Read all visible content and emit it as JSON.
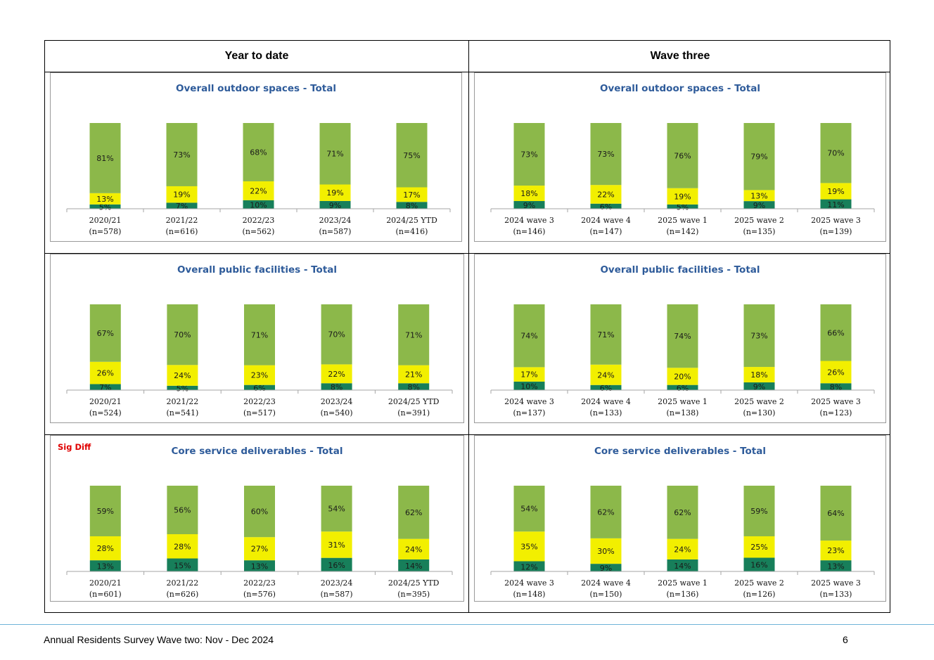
{
  "headers": {
    "left": "Year to date",
    "right": "Wave three"
  },
  "colors": {
    "dark": "#177f5a",
    "mid": "#f2ef00",
    "light": "#8cb84a",
    "title": "#2e5b9a",
    "sig": "#e00000"
  },
  "chart_data": [
    {
      "type": "bar",
      "stacked": true,
      "title": "Overall outdoor spaces - Total",
      "note": "",
      "categories": [
        "2020/21",
        "2021/22",
        "2022/23",
        "2023/24",
        "2024/25 YTD"
      ],
      "bases": [
        "(n=578)",
        "(n=616)",
        "(n=562)",
        "(n=587)",
        "(n=416)"
      ],
      "series": [
        {
          "values": [
            5,
            7,
            10,
            9,
            8
          ]
        },
        {
          "values": [
            13,
            19,
            22,
            19,
            17
          ]
        },
        {
          "values": [
            81,
            73,
            68,
            71,
            75
          ]
        }
      ]
    },
    {
      "type": "bar",
      "stacked": true,
      "title": "Overall outdoor spaces - Total",
      "note": "",
      "categories": [
        "2024 wave 3",
        "2024 wave 4",
        "2025 wave 1",
        "2025 wave 2",
        "2025 wave 3"
      ],
      "bases": [
        "(n=146)",
        "(n=147)",
        "(n=142)",
        "(n=135)",
        "(n=139)"
      ],
      "series": [
        {
          "values": [
            9,
            6,
            5,
            9,
            11
          ]
        },
        {
          "values": [
            18,
            22,
            19,
            13,
            19
          ]
        },
        {
          "values": [
            73,
            73,
            76,
            79,
            70
          ]
        }
      ]
    },
    {
      "type": "bar",
      "stacked": true,
      "title": "Overall public facilities - Total",
      "note": "",
      "categories": [
        "2020/21",
        "2021/22",
        "2022/23",
        "2023/24",
        "2024/25 YTD"
      ],
      "bases": [
        "(n=524)",
        "(n=541)",
        "(n=517)",
        "(n=540)",
        "(n=391)"
      ],
      "series": [
        {
          "values": [
            7,
            5,
            6,
            8,
            8
          ]
        },
        {
          "values": [
            26,
            24,
            23,
            22,
            21
          ]
        },
        {
          "values": [
            67,
            70,
            71,
            70,
            71
          ]
        }
      ]
    },
    {
      "type": "bar",
      "stacked": true,
      "title": "Overall public facilities - Total",
      "note": "",
      "categories": [
        "2024 wave 3",
        "2024 wave 4",
        "2025 wave 1",
        "2025 wave 2",
        "2025 wave 3"
      ],
      "bases": [
        "(n=137)",
        "(n=133)",
        "(n=138)",
        "(n=130)",
        "(n=123)"
      ],
      "series": [
        {
          "values": [
            10,
            6,
            6,
            9,
            8
          ]
        },
        {
          "values": [
            17,
            24,
            20,
            18,
            26
          ]
        },
        {
          "values": [
            74,
            71,
            74,
            73,
            66
          ]
        }
      ]
    },
    {
      "type": "bar",
      "stacked": true,
      "title": "Core service deliverables - Total",
      "note": "Sig Diff",
      "categories": [
        "2020/21",
        "2021/22",
        "2022/23",
        "2023/24",
        "2024/25 YTD"
      ],
      "bases": [
        "(n=601)",
        "(n=626)",
        "(n=576)",
        "(n=587)",
        "(n=395)"
      ],
      "series": [
        {
          "values": [
            13,
            15,
            13,
            16,
            14
          ]
        },
        {
          "values": [
            28,
            28,
            27,
            31,
            24
          ]
        },
        {
          "values": [
            59,
            56,
            60,
            54,
            62
          ]
        }
      ]
    },
    {
      "type": "bar",
      "stacked": true,
      "title": "Core service deliverables - Total",
      "note": "",
      "categories": [
        "2024 wave 3",
        "2024 wave 4",
        "2025 wave 1",
        "2025 wave 2",
        "2025 wave 3"
      ],
      "bases": [
        "(n=148)",
        "(n=150)",
        "(n=136)",
        "(n=126)",
        "(n=133)"
      ],
      "series": [
        {
          "values": [
            12,
            9,
            14,
            16,
            13
          ]
        },
        {
          "values": [
            35,
            30,
            24,
            25,
            23
          ]
        },
        {
          "values": [
            54,
            62,
            62,
            59,
            64
          ]
        }
      ]
    }
  ],
  "footer": {
    "text": "Annual Residents Survey Wave two: Nov - Dec 2024",
    "page": "6"
  }
}
